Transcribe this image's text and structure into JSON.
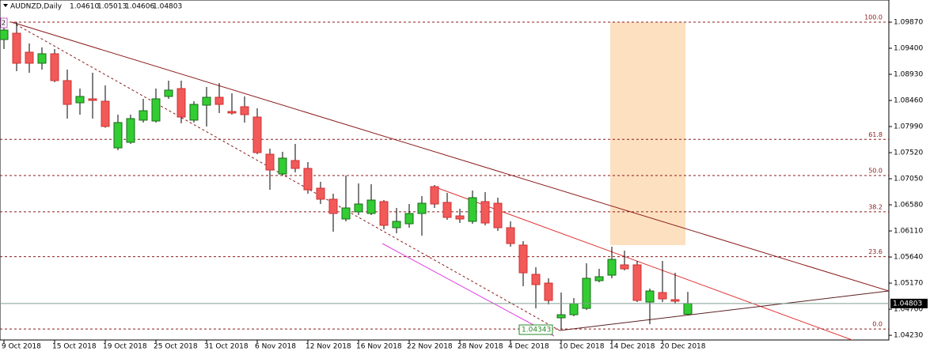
{
  "chart_data": {
    "type": "candlestick",
    "title": "AUDNZD,Daily",
    "ohlc_labels": [
      "1.04610",
      "1.05013",
      "1.04606",
      "1.04803"
    ],
    "object_label": "2",
    "low_label": "1.04343",
    "categories": [
      "9 Oct 2018",
      null,
      null,
      null,
      "15 Oct 2018",
      null,
      null,
      null,
      "19 Oct 2018",
      null,
      null,
      null,
      "25 Oct 2018",
      null,
      null,
      null,
      "31 Oct 2018",
      null,
      null,
      null,
      "6 Nov 2018",
      null,
      null,
      null,
      "12 Nov 2018",
      null,
      null,
      null,
      "16 Nov 2018",
      null,
      null,
      null,
      "22 Nov 2018",
      null,
      null,
      null,
      "28 Nov 2018",
      null,
      null,
      null,
      "4 Dec 2018",
      null,
      null,
      null,
      "10 Dec 2018",
      null,
      null,
      null,
      "14 Dec 2018",
      null,
      null,
      null,
      "20 Dec 2018",
      null,
      null
    ],
    "open": [
      1.09557,
      1.09671,
      1.09329,
      1.0913,
      1.09301,
      1.08817,
      1.08418,
      1.08489,
      1.08446,
      1.07606,
      1.07706,
      1.08105,
      1.0809,
      1.08532,
      1.08674,
      1.08105,
      1.08375,
      1.08517,
      1.08261,
      1.08347,
      1.08161,
      1.07492,
      1.07136,
      1.07378,
      1.07236,
      1.0688,
      1.06681,
      1.06325,
      1.06453,
      1.06424,
      1.06638,
      1.06168,
      1.06239,
      1.06424,
      1.06908,
      1.06624,
      1.06381,
      1.06282,
      1.06638,
      1.06609,
      1.06168,
      1.05855,
      1.05328,
      1.05171,
      1.04545,
      1.04601,
      1.04715,
      1.05214,
      1.05313,
      1.05499,
      1.05499,
      1.04829,
      1.05,
      1.04872,
      1.0461
    ],
    "high": [
      1.0987,
      1.0987,
      1.09486,
      1.09415,
      1.09386,
      1.09016,
      1.08674,
      1.08959,
      1.08731,
      1.08204,
      1.08204,
      1.08489,
      1.08674,
      1.08817,
      1.08817,
      1.08446,
      1.08703,
      1.08774,
      1.08589,
      1.08532,
      1.08318,
      1.07592,
      1.07535,
      1.07677,
      1.0735,
      1.06994,
      1.0678,
      1.07108,
      1.06965,
      1.06951,
      1.06666,
      1.06524,
      1.06595,
      1.06737,
      1.06937,
      1.06794,
      1.0651,
      1.06837,
      1.06809,
      1.06709,
      1.06282,
      1.05926,
      1.05456,
      1.05257,
      1.05,
      1.04901,
      1.05527,
      1.05427,
      1.05826,
      1.05755,
      1.0557,
      1.05071,
      1.0557,
      1.05356,
      1.05013
    ],
    "low": [
      1.09386,
      1.08987,
      1.08959,
      1.09016,
      1.08788,
      1.08133,
      1.08204,
      1.08133,
      1.0797,
      1.07563,
      1.07677,
      1.08062,
      1.08062,
      1.08489,
      1.08048,
      1.08062,
      1.07991,
      1.08233,
      1.08204,
      1.08062,
      1.07492,
      1.06851,
      1.07108,
      1.07165,
      1.0678,
      1.06595,
      1.06097,
      1.06282,
      1.06396,
      1.06396,
      1.06139,
      1.06068,
      1.06168,
      1.06025,
      1.06524,
      1.0631,
      1.06253,
      1.06239,
      1.06211,
      1.06111,
      1.05826,
      1.05114,
      1.04715,
      1.04787,
      1.04343,
      1.04573,
      1.04687,
      1.05185,
      1.05257,
      1.05399,
      1.04829,
      1.04431,
      1.04829,
      1.04801,
      1.04606
    ],
    "close": [
      1.09728,
      1.0913,
      1.0913,
      1.09301,
      1.08817,
      1.08389,
      1.08532,
      1.08461,
      1.07991,
      1.08062,
      1.08133,
      1.08275,
      1.08489,
      1.08646,
      1.08161,
      1.08389,
      1.08517,
      1.08389,
      1.08233,
      1.08204,
      1.07521,
      1.07207,
      1.07421,
      1.07236,
      1.06851,
      1.06681,
      1.06424,
      1.06524,
      1.06595,
      1.06666,
      1.06211,
      1.06282,
      1.06424,
      1.06609,
      1.06595,
      1.06353,
      1.06325,
      1.06709,
      1.06253,
      1.06168,
      1.05883,
      1.05356,
      1.05143,
      1.04858,
      1.04601,
      1.04801,
      1.05257,
      1.05285,
      1.05598,
      1.05427,
      1.04858,
      1.05029,
      1.04886,
      1.04844,
      1.04803
    ],
    "up_color": "#32cd32",
    "down_color": "#f25a5a",
    "ylim": [
      1.04146,
      1.10269
    ],
    "yticks": [
      {
        "value": 1.0987,
        "label": "1.09870"
      },
      {
        "value": 1.094,
        "label": "1.09400"
      },
      {
        "value": 1.0893,
        "label": "1.08930"
      },
      {
        "value": 1.0846,
        "label": "1.08460"
      },
      {
        "value": 1.0799,
        "label": "1.07990"
      },
      {
        "value": 1.0752,
        "label": "1.07520"
      },
      {
        "value": 1.0705,
        "label": "1.07050"
      },
      {
        "value": 1.0658,
        "label": "1.06580"
      },
      {
        "value": 1.0611,
        "label": "1.06110"
      },
      {
        "value": 1.0564,
        "label": "1.05640"
      },
      {
        "value": 1.0517,
        "label": "1.05170"
      },
      {
        "value": 1.047,
        "label": "1.04700"
      },
      {
        "value": 1.0423,
        "label": "1.04230"
      }
    ],
    "fib_levels": [
      {
        "value": 1.0987,
        "label": "100.0"
      },
      {
        "value": 1.07759,
        "label": "61.8"
      },
      {
        "value": 1.07107,
        "label": "50.0"
      },
      {
        "value": 1.06454,
        "label": "38.2"
      },
      {
        "value": 1.05647,
        "label": "23.6"
      },
      {
        "value": 1.04343,
        "label": "0.0"
      }
    ],
    "grid": false
  }
}
